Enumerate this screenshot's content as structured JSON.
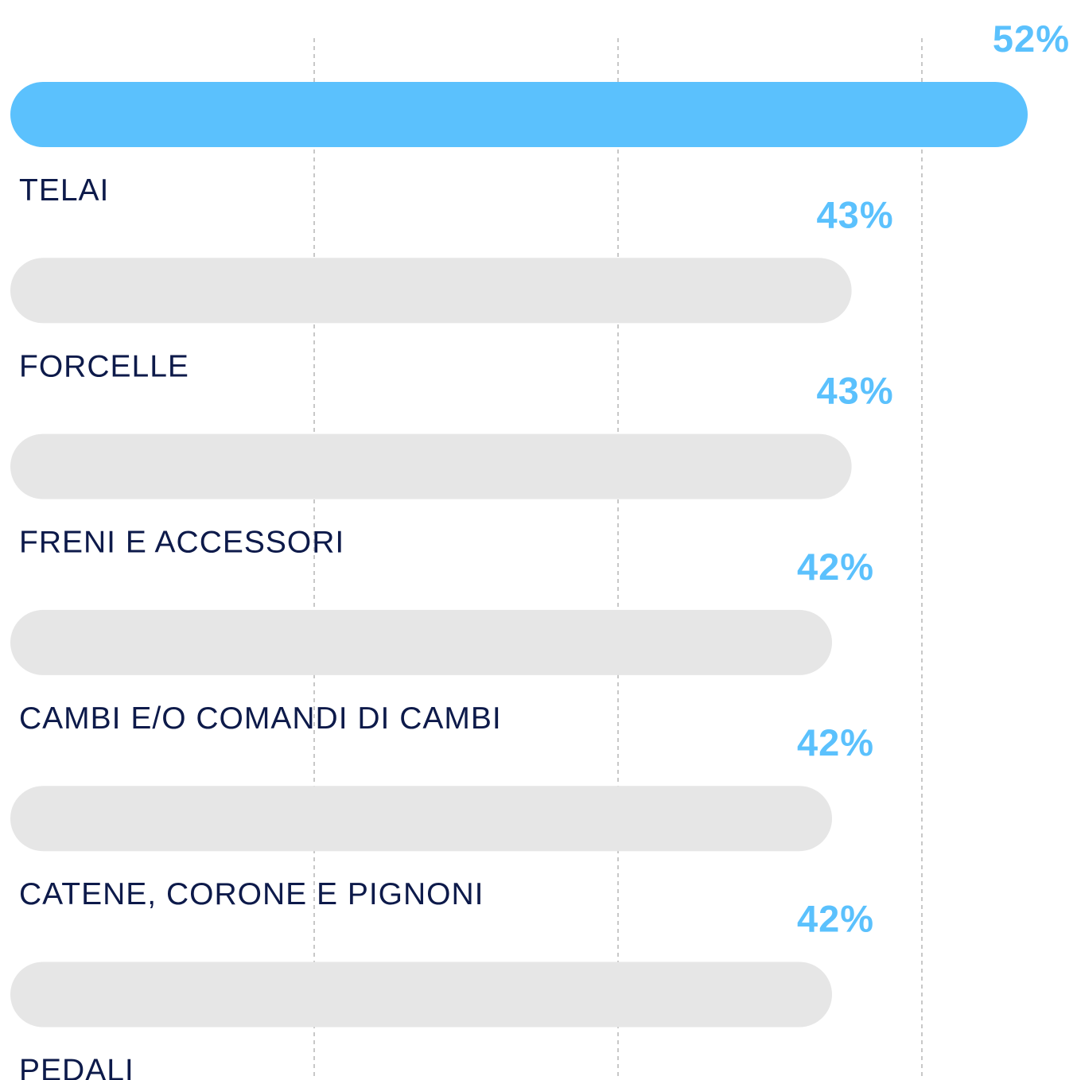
{
  "chart_data": {
    "type": "bar",
    "orientation": "horizontal",
    "categories": [
      "TELAI",
      "FORCELLE",
      "FRENI E ACCESSORI",
      "CAMBI E/O COMANDI DI CAMBI",
      "CATENE, CORONE E PIGNONI",
      "PEDALI"
    ],
    "values": [
      52,
      43,
      43,
      42,
      42,
      42
    ],
    "value_labels": [
      "52%",
      "43%",
      "43%",
      "42%",
      "42%",
      "42%"
    ],
    "colors": [
      "#5bc1fd",
      "#e6e6e6",
      "#e6e6e6",
      "#e6e6e6",
      "#e6e6e6",
      "#e6e6e6"
    ],
    "xlim": [
      0,
      52
    ]
  }
}
